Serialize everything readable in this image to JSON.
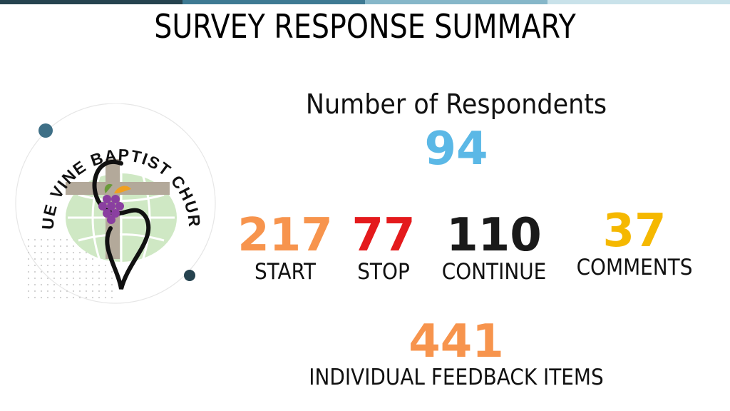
{
  "title": "SURVEY RESPONSE SUMMARY",
  "logo": {
    "text": "TRUE VINE BAPTIST CHURCH"
  },
  "respondents": {
    "label": "Number of Respondents",
    "value": "94",
    "color": "#5bb8e6"
  },
  "stats": [
    {
      "value": "217",
      "label": "START",
      "color": "#f7944d"
    },
    {
      "value": "77",
      "label": "STOP",
      "color": "#e41a1c"
    },
    {
      "value": "110",
      "label": "CONTINUE",
      "color": "#1a1a1a"
    },
    {
      "value": "37",
      "label": "COMMENTS",
      "color": "#f5b800"
    }
  ],
  "total": {
    "value": "441",
    "label": "INDIVIDUAL FEEDBACK ITEMS",
    "color": "#f7944d"
  },
  "colors": {
    "topbar": [
      "#26434f",
      "#3e7a93",
      "#86b7c9",
      "#c9e2ea"
    ]
  }
}
